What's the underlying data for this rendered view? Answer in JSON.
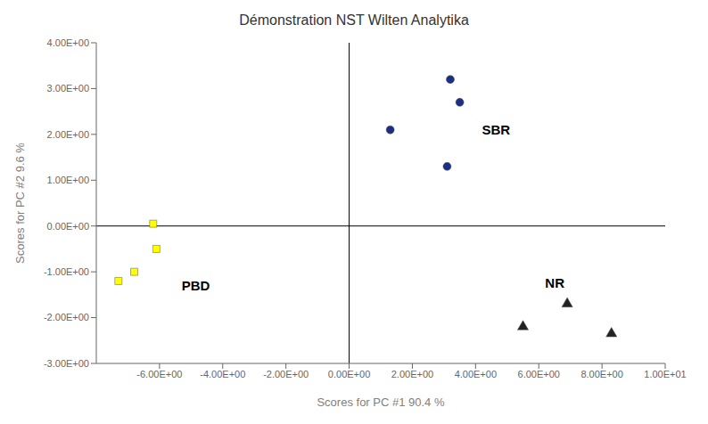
{
  "chart_data": {
    "type": "scatter",
    "title": "Démonstration NST Wilten Analytika",
    "xlabel": "Scores for PC #1 90.4 %",
    "ylabel": "Scores for PC #2 9.6 %",
    "xlim": [
      -8.0,
      10.0
    ],
    "ylim": [
      -3.0,
      4.0
    ],
    "xticks": [
      {
        "value": -6.0,
        "label": "-6.00E+00"
      },
      {
        "value": -4.0,
        "label": "-4.00E+00"
      },
      {
        "value": -2.0,
        "label": "-2.00E+00"
      },
      {
        "value": 0.0,
        "label": "0.00E+00"
      },
      {
        "value": 2.0,
        "label": "2.00E+00"
      },
      {
        "value": 4.0,
        "label": "4.00E+00"
      },
      {
        "value": 6.0,
        "label": "6.00E+00"
      },
      {
        "value": 8.0,
        "label": "8.00E+00"
      },
      {
        "value": 10.0,
        "label": "1.00E+01"
      }
    ],
    "yticks": [
      {
        "value": -3.0,
        "label": "-3.00E+00"
      },
      {
        "value": -2.0,
        "label": "-2.00E+00"
      },
      {
        "value": -1.0,
        "label": "-1.00E+00"
      },
      {
        "value": 0.0,
        "label": "0.00E+00"
      },
      {
        "value": 1.0,
        "label": "1.00E+00"
      },
      {
        "value": 2.0,
        "label": "2.00E+00"
      },
      {
        "value": 3.0,
        "label": "3.00E+00"
      },
      {
        "value": 4.0,
        "label": "4.00E+00"
      }
    ],
    "series": [
      {
        "color": "#1c2f80",
        "marker": "circle",
        "x": [
          1.3,
          3.2,
          3.5,
          3.1
        ],
        "y": [
          2.1,
          3.2,
          2.7,
          1.3
        ]
      },
      {
        "color": "#ffff00",
        "marker": "square",
        "x": [
          -6.2,
          -6.1,
          -6.8,
          -7.3
        ],
        "y": [
          0.05,
          -0.5,
          -1.0,
          -1.2
        ]
      },
      {
        "color": "#222222",
        "marker": "triangle",
        "x": [
          5.5,
          6.9,
          8.3
        ],
        "y": [
          -2.2,
          -1.7,
          -2.35
        ]
      }
    ],
    "annotations": [
      {
        "text": "SBR",
        "x": 4.2,
        "y": 2.0
      },
      {
        "text": "PBD",
        "x": -5.3,
        "y": -1.4
      },
      {
        "text": "NR",
        "x": 6.2,
        "y": -1.35
      }
    ],
    "grid": false,
    "legend": false
  }
}
